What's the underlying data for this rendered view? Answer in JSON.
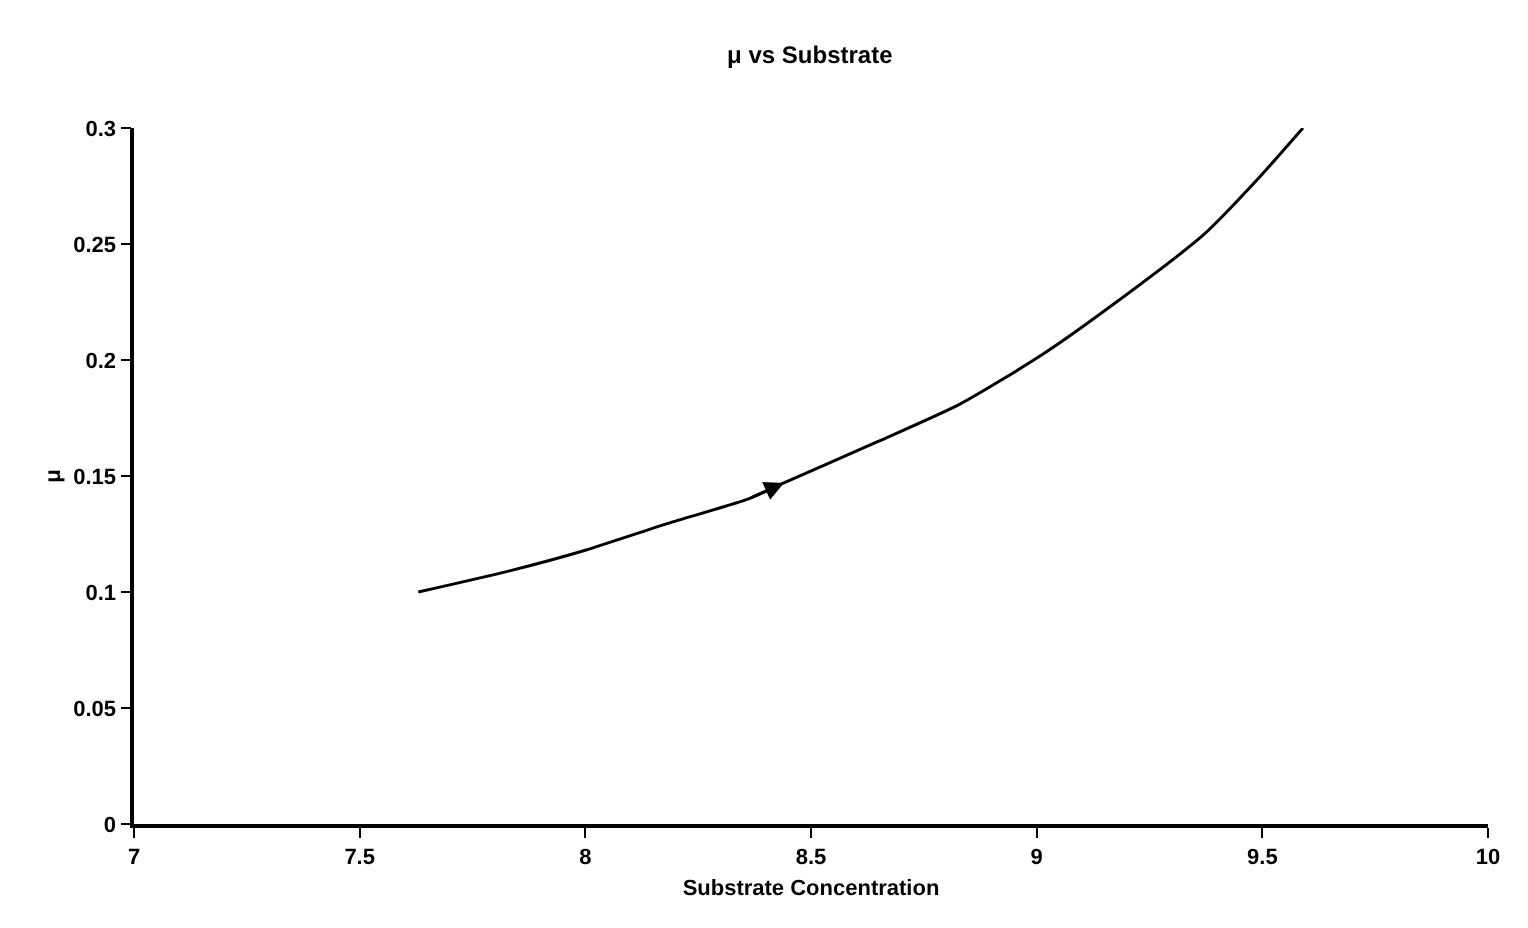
{
  "chart_data": {
    "type": "line",
    "title": "μ vs Substrate",
    "xlabel": "Substrate Concentration",
    "ylabel": "μ",
    "x": [
      7.63,
      7.83,
      8.0,
      8.19,
      8.36,
      8.44,
      8.65,
      8.83,
      9.01,
      9.17,
      9.37,
      9.49,
      9.59
    ],
    "series": [
      {
        "color": "#000000",
        "values": [
          0.1,
          0.109,
          0.118,
          0.13,
          0.14,
          0.147,
          0.165,
          0.181,
          0.202,
          0.224,
          0.254,
          0.278,
          0.3
        ]
      }
    ],
    "xlim": [
      7,
      10
    ],
    "xticks": [
      7,
      7.5,
      8,
      8.5,
      9,
      9.5,
      10
    ],
    "ylim": [
      0,
      0.3
    ],
    "yticks": [
      0,
      0.05,
      0.1,
      0.15,
      0.2,
      0.25,
      0.3
    ],
    "grid": false,
    "marker": "none",
    "line_style": "solid"
  }
}
